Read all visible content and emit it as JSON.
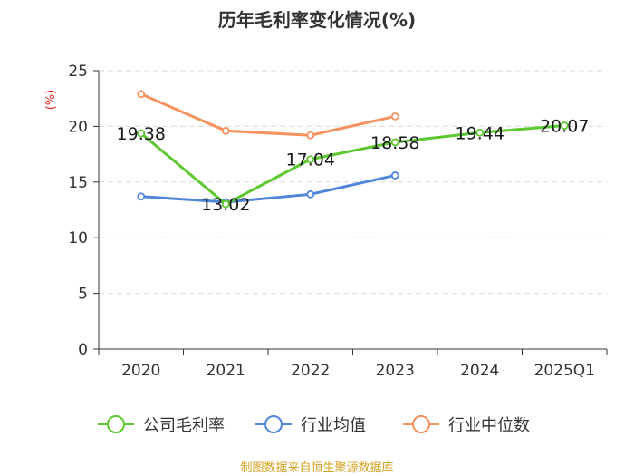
{
  "title": "历年毛利率变化情况(%)",
  "source": "制图数据来自恒生聚源数据库",
  "chart_data": {
    "type": "line",
    "title": "历年毛利率变化情况(%)",
    "ylabel": "(%)",
    "xlabel": "",
    "categories": [
      "2020",
      "2021",
      "2022",
      "2023",
      "2024",
      "2025Q1"
    ],
    "ylim": [
      0,
      25
    ],
    "yticks": [
      0,
      5,
      10,
      15,
      20,
      25
    ],
    "grid": "horizontal-dashed",
    "legend_position": "bottom",
    "series": [
      {
        "name": "公司毛利率",
        "color": "#5cc72e",
        "values": [
          19.38,
          13.02,
          17.04,
          18.58,
          19.44,
          20.07
        ],
        "labels": [
          "19.38",
          "13.02",
          "17.04",
          "18.58",
          "19.44",
          "20.07"
        ]
      },
      {
        "name": "行业均值",
        "color": "#4f86d9",
        "values": [
          13.7,
          13.2,
          13.9,
          15.6,
          null,
          null
        ]
      },
      {
        "name": "行业中位数",
        "color": "#f5925e",
        "values": [
          22.9,
          19.6,
          19.2,
          20.9,
          null,
          null
        ]
      }
    ]
  }
}
